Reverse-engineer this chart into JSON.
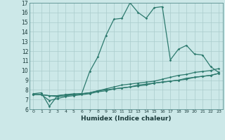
{
  "xlabel": "Humidex (Indice chaleur)",
  "xlim_min": -0.5,
  "xlim_max": 23.5,
  "ylim_min": 6,
  "ylim_max": 17,
  "yticks": [
    6,
    7,
    8,
    9,
    10,
    11,
    12,
    13,
    14,
    15,
    16,
    17
  ],
  "xticks": [
    0,
    1,
    2,
    3,
    4,
    5,
    6,
    7,
    8,
    9,
    10,
    11,
    12,
    13,
    14,
    15,
    16,
    17,
    18,
    19,
    20,
    21,
    22,
    23
  ],
  "bg_color": "#cce8e8",
  "line_color": "#2d7a6e",
  "grid_color": "#aacccc",
  "line1_y": [
    7.6,
    7.7,
    6.3,
    7.4,
    7.5,
    7.6,
    7.6,
    9.9,
    11.4,
    13.6,
    15.3,
    15.4,
    17.0,
    16.0,
    15.4,
    16.5,
    16.6,
    11.1,
    12.2,
    12.6,
    11.7,
    11.6,
    10.4,
    9.8
  ],
  "line2_y": [
    7.5,
    7.5,
    7.4,
    7.4,
    7.5,
    7.5,
    7.6,
    7.7,
    7.9,
    8.1,
    8.3,
    8.5,
    8.6,
    8.7,
    8.8,
    8.9,
    9.1,
    9.3,
    9.5,
    9.6,
    9.8,
    9.9,
    10.0,
    10.2
  ],
  "line3_y": [
    7.5,
    7.5,
    7.4,
    7.3,
    7.4,
    7.5,
    7.6,
    7.7,
    7.9,
    8.0,
    8.1,
    8.2,
    8.3,
    8.5,
    8.6,
    8.7,
    8.8,
    8.9,
    9.0,
    9.2,
    9.3,
    9.4,
    9.5,
    9.7
  ],
  "line4_y": [
    7.5,
    7.5,
    6.9,
    7.1,
    7.3,
    7.4,
    7.5,
    7.6,
    7.8,
    7.9,
    8.1,
    8.2,
    8.3,
    8.4,
    8.5,
    8.7,
    8.8,
    8.9,
    9.0,
    9.1,
    9.3,
    9.4,
    9.5,
    9.7
  ]
}
